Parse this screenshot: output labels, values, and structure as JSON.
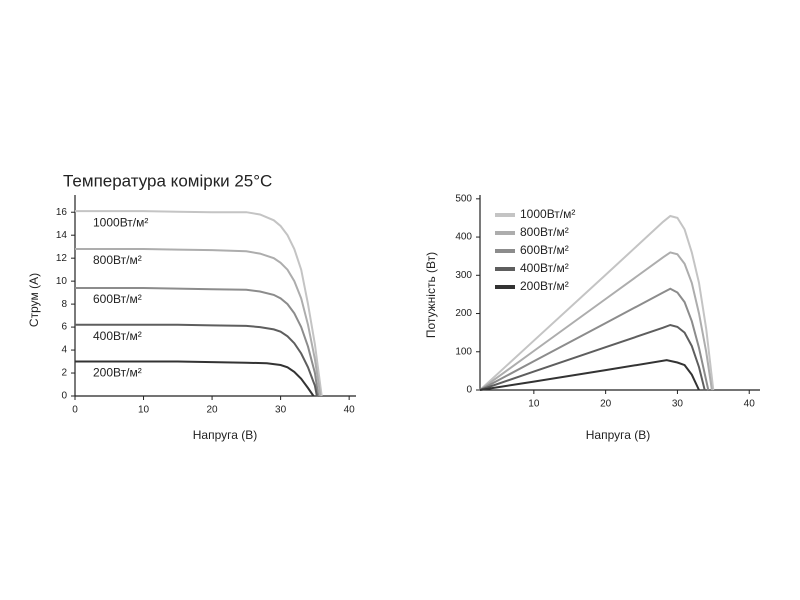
{
  "chart_data": [
    {
      "type": "line",
      "title": "Температура комірки 25°C",
      "x_label": "Напруга (В)",
      "y_label": "Струм (А)",
      "xlim": [
        0,
        41
      ],
      "ylim": [
        0,
        17.5
      ],
      "xticks": [
        0,
        10,
        20,
        30,
        40
      ],
      "yticks": [
        0,
        2,
        4,
        6,
        8,
        10,
        12,
        14,
        16
      ],
      "legend": "inline",
      "grid": false,
      "series": [
        {
          "name": "1000Вт/м²",
          "color": "#c4c4c4",
          "x": [
            0,
            5,
            10,
            15,
            20,
            25,
            27,
            29,
            30,
            31,
            32,
            33,
            34,
            35,
            36
          ],
          "values": [
            16.1,
            16.1,
            16.1,
            16.05,
            16.0,
            16.0,
            15.8,
            15.3,
            14.8,
            14.0,
            12.8,
            11.0,
            8.0,
            4.5,
            0
          ]
        },
        {
          "name": "800Вт/м²",
          "color": "#adadad",
          "x": [
            0,
            5,
            10,
            15,
            20,
            25,
            27,
            29,
            30,
            31,
            32,
            33,
            34,
            35,
            35.8
          ],
          "values": [
            12.8,
            12.8,
            12.8,
            12.75,
            12.7,
            12.6,
            12.4,
            12.0,
            11.6,
            11.0,
            10.0,
            8.5,
            6.2,
            3.2,
            0
          ]
        },
        {
          "name": "600Вт/м²",
          "color": "#8c8c8c",
          "x": [
            0,
            5,
            10,
            15,
            20,
            25,
            27,
            29,
            30,
            31,
            32,
            33,
            34,
            35,
            35.5
          ],
          "values": [
            9.4,
            9.4,
            9.4,
            9.35,
            9.3,
            9.25,
            9.1,
            8.8,
            8.5,
            8.0,
            7.2,
            6.0,
            4.3,
            2.0,
            0
          ]
        },
        {
          "name": "400Вт/м²",
          "color": "#5e5e5e",
          "x": [
            0,
            5,
            10,
            15,
            20,
            25,
            27,
            29,
            30,
            31,
            32,
            33,
            34,
            35,
            35.3
          ],
          "values": [
            6.2,
            6.2,
            6.2,
            6.2,
            6.15,
            6.1,
            6.0,
            5.8,
            5.6,
            5.2,
            4.6,
            3.7,
            2.5,
            0.9,
            0
          ]
        },
        {
          "name": "200Вт/м²",
          "color": "#333333",
          "x": [
            0,
            5,
            10,
            15,
            20,
            25,
            28,
            30,
            31,
            32,
            33,
            34,
            34.8
          ],
          "values": [
            3.0,
            3.0,
            3.0,
            3.0,
            2.95,
            2.9,
            2.85,
            2.7,
            2.5,
            2.1,
            1.5,
            0.7,
            0
          ]
        }
      ]
    },
    {
      "type": "line",
      "x_label": "Напруга (В)",
      "y_label": "Потужність  (Вт)",
      "xlim": [
        2.5,
        41.5
      ],
      "ylim": [
        0,
        510
      ],
      "xticks": [
        10,
        20,
        30,
        40
      ],
      "yticks": [
        0,
        100,
        200,
        300,
        400,
        500
      ],
      "legend": "upper left",
      "grid": false,
      "series": [
        {
          "name": "1000Вт/м²",
          "color": "#c4c4c4",
          "x": [
            2.5,
            10,
            20,
            28,
            29,
            30,
            31,
            32,
            33,
            34,
            35
          ],
          "values": [
            0,
            129,
            301,
            440,
            455,
            450,
            420,
            360,
            280,
            160,
            0
          ]
        },
        {
          "name": "800Вт/м²",
          "color": "#adadad",
          "x": [
            2.5,
            10,
            20,
            28,
            29,
            30,
            31,
            32,
            33,
            34,
            34.8
          ],
          "values": [
            0,
            102,
            238,
            347,
            360,
            355,
            330,
            280,
            200,
            100,
            0
          ]
        },
        {
          "name": "600Вт/м²",
          "color": "#8c8c8c",
          "x": [
            2.5,
            10,
            20,
            28,
            29,
            30,
            31,
            32,
            33,
            34.3
          ],
          "values": [
            0,
            75,
            175,
            255,
            265,
            255,
            230,
            180,
            110,
            0
          ]
        },
        {
          "name": "400Вт/м²",
          "color": "#5e5e5e",
          "x": [
            2.5,
            10,
            20,
            28,
            29,
            30,
            31,
            32,
            33,
            33.8
          ],
          "values": [
            0,
            48,
            112,
            163,
            170,
            165,
            150,
            115,
            60,
            0
          ]
        },
        {
          "name": "200Вт/м²",
          "color": "#333333",
          "x": [
            2.5,
            10,
            20,
            28.5,
            30,
            31,
            32,
            33
          ],
          "values": [
            0,
            22,
            52,
            78,
            72,
            65,
            40,
            0
          ]
        }
      ]
    }
  ]
}
